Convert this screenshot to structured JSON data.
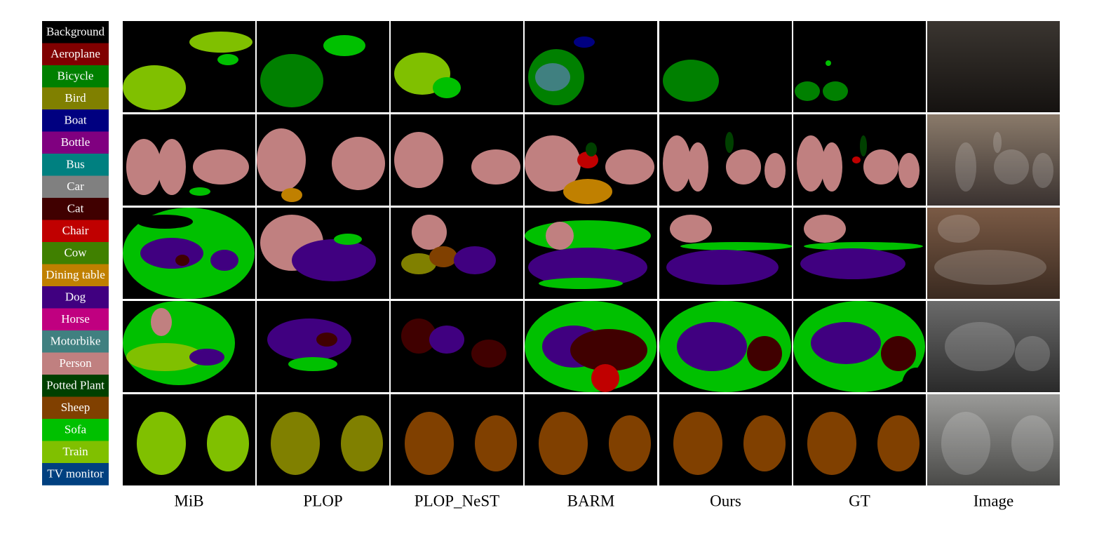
{
  "legend": [
    {
      "label": "Background",
      "color": "#000000"
    },
    {
      "label": "Aeroplane",
      "color": "#800000"
    },
    {
      "label": "Bicycle",
      "color": "#008000"
    },
    {
      "label": "Bird",
      "color": "#808000"
    },
    {
      "label": "Boat",
      "color": "#000080"
    },
    {
      "label": "Bottle",
      "color": "#800080"
    },
    {
      "label": "Bus",
      "color": "#008080"
    },
    {
      "label": "Car",
      "color": "#808080"
    },
    {
      "label": "Cat",
      "color": "#400000"
    },
    {
      "label": "Chair",
      "color": "#c00000"
    },
    {
      "label": "Cow",
      "color": "#408000"
    },
    {
      "label": "Dining table",
      "color": "#c08000"
    },
    {
      "label": "Dog",
      "color": "#400080"
    },
    {
      "label": "Horse",
      "color": "#c00080"
    },
    {
      "label": "Motorbike",
      "color": "#408080"
    },
    {
      "label": "Person",
      "color": "#c08080"
    },
    {
      "label": "Potted Plant",
      "color": "#004000"
    },
    {
      "label": "Sheep",
      "color": "#804000"
    },
    {
      "label": "Sofa",
      "color": "#00c000"
    },
    {
      "label": "Train",
      "color": "#80c000"
    },
    {
      "label": "TV monitor",
      "color": "#004080"
    }
  ],
  "columns": [
    "MiB",
    "PLOP",
    "PLOP_NeST",
    "BARM",
    "Ours",
    "GT",
    "Image"
  ]
}
